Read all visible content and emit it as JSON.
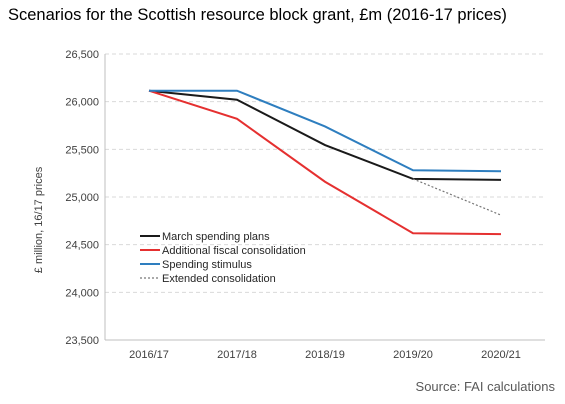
{
  "chart_data": {
    "type": "line",
    "title": "Scenarios for the Scottish resource block grant, £m (2016-17 prices)",
    "source": "Source: FAI calculations",
    "ylabel": "£ million, 16/17 prices",
    "xlabel": "",
    "categories": [
      "2016/17",
      "2017/18",
      "2018/19",
      "2019/20",
      "2020/21"
    ],
    "ylim": [
      23500,
      26500
    ],
    "yticks": [
      23500,
      24000,
      24500,
      25000,
      25500,
      26000,
      26500
    ],
    "ytick_labels": [
      "23,500",
      "24,000",
      "24,500",
      "25,000",
      "25,500",
      "26,000",
      "26,500"
    ],
    "grid": true,
    "legend_position": "bottom-left",
    "series": [
      {
        "name": "March spending plans",
        "color": "#1a1a1a",
        "style": "solid",
        "values": [
          26115,
          26020,
          25545,
          25190,
          25180
        ]
      },
      {
        "name": "Additional fiscal consolidation",
        "color": "#e53030",
        "style": "solid",
        "values": [
          26115,
          25820,
          25160,
          24620,
          24610
        ]
      },
      {
        "name": "Spending stimulus",
        "color": "#2e7ebf",
        "style": "solid",
        "values": [
          26115,
          26115,
          25740,
          25280,
          25270
        ]
      },
      {
        "name": "Extended consolidation",
        "color": "#777777",
        "style": "dotted",
        "values": [
          null,
          null,
          null,
          25190,
          24810
        ]
      }
    ]
  }
}
